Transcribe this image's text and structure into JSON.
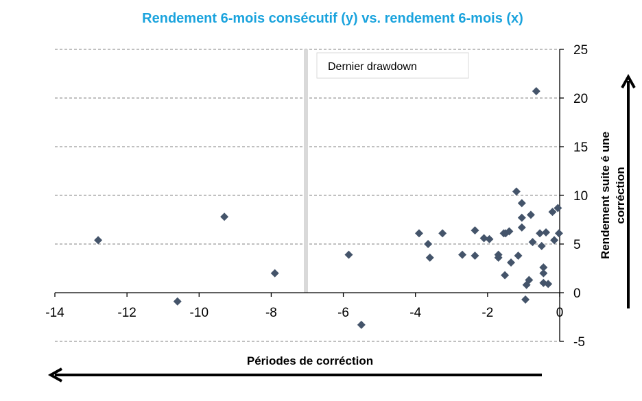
{
  "chart_data": {
    "type": "scatter",
    "title": "Rendement 6-mois consécutif (y) vs. rendement 6-mois (x)",
    "xlabel": "Périodes de corréction",
    "ylabel": "Rendement suite é une corréction",
    "xlim": [
      -14,
      0
    ],
    "ylim": [
      -5,
      25
    ],
    "x_ticks": [
      -14,
      -12,
      -10,
      -8,
      -6,
      -4,
      -2,
      0
    ],
    "y_ticks": [
      -5,
      0,
      5,
      10,
      15,
      20,
      25
    ],
    "annotation": "Dernier drawdown",
    "grid": "horizontal dashed",
    "colors": {
      "marker": "#44546a",
      "title": "#1aa3dd",
      "grid": "#808080",
      "divider": "#d9d9d9"
    },
    "points": [
      {
        "x": -12.8,
        "y": 5.4
      },
      {
        "x": -10.6,
        "y": -0.9
      },
      {
        "x": -9.3,
        "y": 7.8
      },
      {
        "x": -7.9,
        "y": 2.0
      },
      {
        "x": -5.85,
        "y": 3.9
      },
      {
        "x": -5.5,
        "y": -3.3
      },
      {
        "x": -3.9,
        "y": 6.1
      },
      {
        "x": -3.65,
        "y": 5.0
      },
      {
        "x": -3.6,
        "y": 3.6
      },
      {
        "x": -3.25,
        "y": 6.1
      },
      {
        "x": -2.7,
        "y": 3.9
      },
      {
        "x": -2.35,
        "y": 6.4
      },
      {
        "x": -2.35,
        "y": 3.8
      },
      {
        "x": -2.1,
        "y": 5.6
      },
      {
        "x": -1.95,
        "y": 5.5
      },
      {
        "x": -1.7,
        "y": 3.9
      },
      {
        "x": -1.7,
        "y": 3.6
      },
      {
        "x": -1.55,
        "y": 6.1
      },
      {
        "x": -1.5,
        "y": 6.1
      },
      {
        "x": -1.52,
        "y": 1.8
      },
      {
        "x": -1.4,
        "y": 6.3
      },
      {
        "x": -1.35,
        "y": 3.1
      },
      {
        "x": -1.2,
        "y": 10.4
      },
      {
        "x": -1.15,
        "y": 3.8
      },
      {
        "x": -1.05,
        "y": 9.2
      },
      {
        "x": -1.05,
        "y": 7.7
      },
      {
        "x": -1.05,
        "y": 6.7
      },
      {
        "x": -0.95,
        "y": -0.7
      },
      {
        "x": -0.92,
        "y": 0.8
      },
      {
        "x": -0.85,
        "y": 1.3
      },
      {
        "x": -0.8,
        "y": 8.0
      },
      {
        "x": -0.75,
        "y": 5.2
      },
      {
        "x": -0.65,
        "y": 20.7
      },
      {
        "x": -0.55,
        "y": 6.1
      },
      {
        "x": -0.5,
        "y": 4.8
      },
      {
        "x": -0.45,
        "y": 2.6
      },
      {
        "x": -0.45,
        "y": 2.0
      },
      {
        "x": -0.45,
        "y": 1.0
      },
      {
        "x": -0.38,
        "y": 6.2
      },
      {
        "x": -0.32,
        "y": 0.9
      },
      {
        "x": -0.2,
        "y": 8.3
      },
      {
        "x": -0.15,
        "y": 5.4
      },
      {
        "x": -0.05,
        "y": 8.7
      },
      {
        "x": -0.02,
        "y": 6.1
      }
    ]
  }
}
